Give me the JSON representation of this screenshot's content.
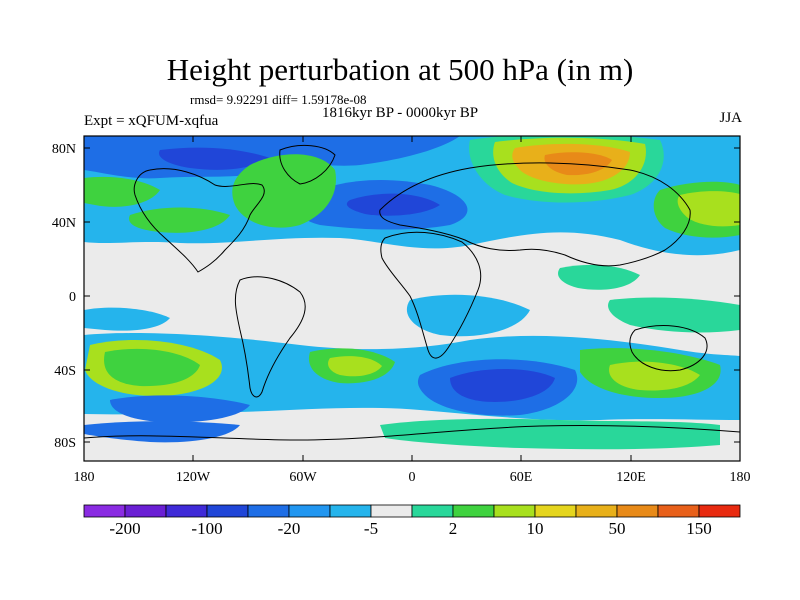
{
  "header": {
    "title": "Height perturbation at 500 hPa (in m)",
    "stats": "rmsd= 9.92291 diff= 1.59178e-08",
    "period": "1816kyr BP - 0000kyr BP",
    "experiment": "Expt = xQFUM-xqfua",
    "season": "JJA"
  },
  "map": {
    "projection": "cylindrical equidistant",
    "lat_ticks": [
      "80N",
      "40N",
      "0",
      "40S",
      "80S"
    ],
    "lon_ticks": [
      "180",
      "120W",
      "60W",
      "0",
      "60E",
      "120E",
      "180"
    ]
  },
  "colorbar": {
    "colors": [
      "#8a2be2",
      "#6a1fd4",
      "#3f2ad8",
      "#2046d8",
      "#1e6ee6",
      "#2196f0",
      "#25b4ec",
      "#ebebeb",
      "#29d79a",
      "#3fd23f",
      "#a8e01e",
      "#e5d51e",
      "#e8b01a",
      "#e88a18",
      "#e8601a",
      "#e82a10"
    ],
    "labels": [
      "-200",
      "-100",
      "-20",
      "-5",
      "2",
      "10",
      "50",
      "150"
    ],
    "label_positions": [
      1,
      3,
      5,
      7,
      9,
      11,
      13,
      15
    ]
  }
}
